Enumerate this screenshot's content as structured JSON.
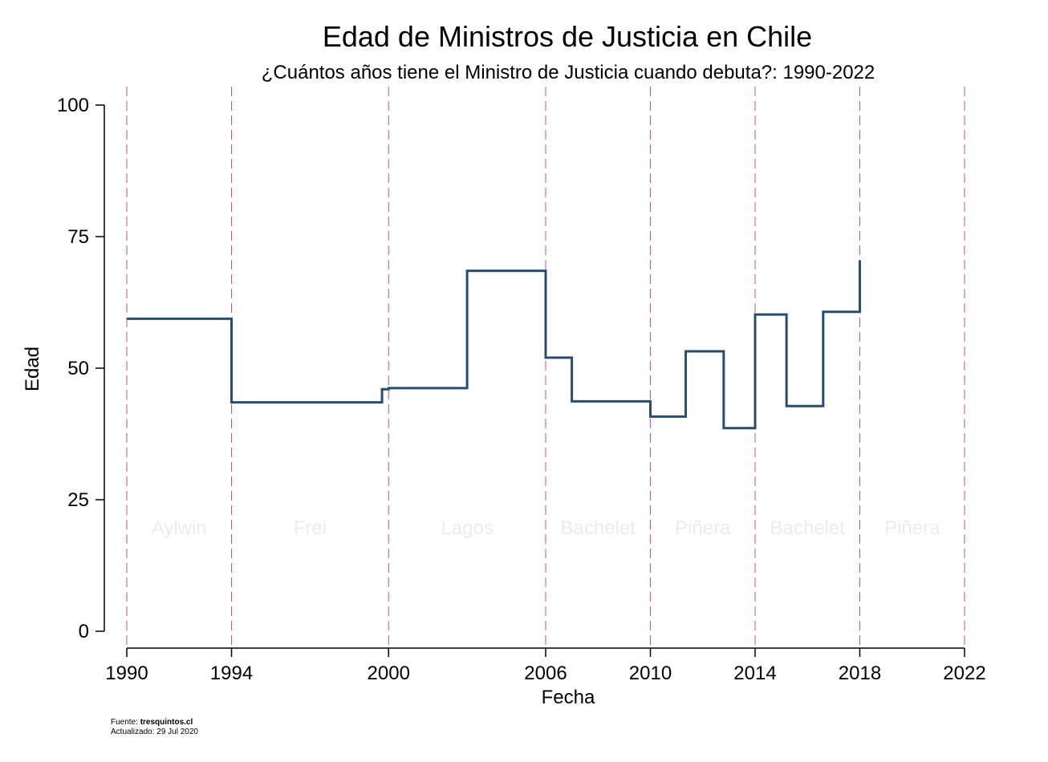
{
  "chart_data": {
    "type": "line",
    "title": "Edad de Ministros de Justicia en Chile",
    "subtitle": "¿Cuántos años tiene el Ministro de Justicia cuando debuta?: 1990-2022",
    "xlabel": "Fecha",
    "ylabel": "Edad",
    "xlim": [
      1990,
      2022
    ],
    "ylim": [
      0,
      100
    ],
    "xticks": [
      "1990",
      "1994",
      "2000",
      "2006",
      "2010",
      "2014",
      "2018",
      "2022"
    ],
    "yticks": [
      "0",
      "25",
      "50",
      "75",
      "100"
    ],
    "line_color": "#2a4d6e",
    "vline_color": "#c9566e",
    "period_color": "#ececec",
    "periods": [
      {
        "label": "Aylwin",
        "start": 1990,
        "end": 1994
      },
      {
        "label": "Frei",
        "start": 1994,
        "end": 2000
      },
      {
        "label": "Lagos",
        "start": 2000,
        "end": 2006
      },
      {
        "label": "Bachelet",
        "start": 2006,
        "end": 2010
      },
      {
        "label": "Piñera",
        "start": 2010,
        "end": 2014
      },
      {
        "label": "Bachelet",
        "start": 2014,
        "end": 2018
      },
      {
        "label": "Piñera",
        "start": 2018,
        "end": 2022
      }
    ],
    "series": [
      {
        "type": "step",
        "points": [
          {
            "x": 1990.0,
            "y": 59.4
          },
          {
            "x": 1994.0,
            "y": 43.5
          },
          {
            "x": 1999.75,
            "y": 46.0
          },
          {
            "x": 2000.0,
            "y": 46.2
          },
          {
            "x": 2003.0,
            "y": 68.5
          },
          {
            "x": 2006.0,
            "y": 52.0
          },
          {
            "x": 2007.0,
            "y": 43.7
          },
          {
            "x": 2010.0,
            "y": 40.8
          },
          {
            "x": 2011.35,
            "y": 53.2
          },
          {
            "x": 2012.8,
            "y": 38.6
          },
          {
            "x": 2014.0,
            "y": 60.2
          },
          {
            "x": 2015.2,
            "y": 42.8
          },
          {
            "x": 2016.6,
            "y": 60.7
          },
          {
            "x": 2018.0,
            "y": 70.5
          }
        ]
      }
    ]
  },
  "footer": {
    "source_label": "Fuente: ",
    "source_value": "tresquintos.cl",
    "updated": "Actualizado: 29 Jul 2020"
  }
}
